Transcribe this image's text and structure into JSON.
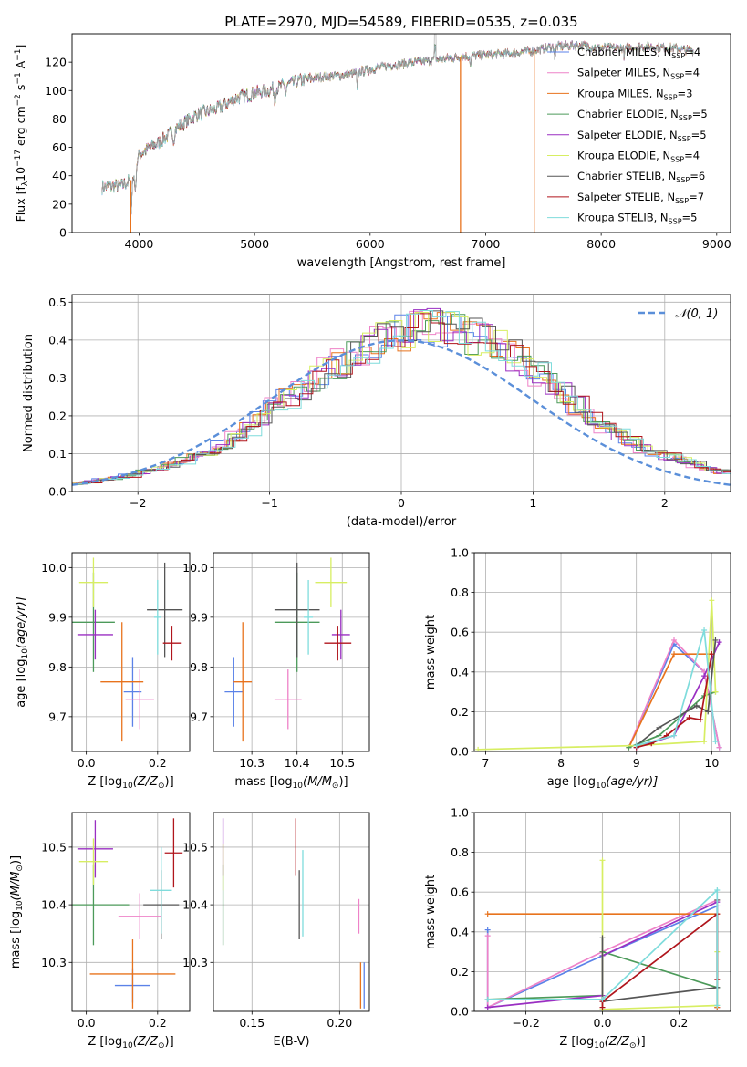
{
  "title": "PLATE=2970, MJD=54589, FIBERID=0535, z=0.035",
  "colors": {
    "Chabrier MILES": "#5b82e8",
    "Salpeter MILES": "#ee82c8",
    "Kroupa MILES": "#e8731d",
    "Chabrier ELODIE": "#4c9a5a",
    "Salpeter ELODIE": "#9a2fc2",
    "Kroupa ELODIE": "#d7ee62",
    "Chabrier STELIB": "#555555",
    "Salpeter STELIB": "#b0151c",
    "Kroupa STELIB": "#7fdcdc",
    "data": "#a0a0a0",
    "normal": "#5b8fd9"
  },
  "chart_data": [
    {
      "id": "spectrum",
      "type": "line",
      "xlabel": "wavelength [Angstrom, rest frame]",
      "ylabel": "Flux [f",
      "ylabel_sub": "λ",
      "ylabel_rest": "10",
      "ylabel_exp": "−17",
      "ylabel_tail": " erg cm",
      "ylabel_exp2": "−2",
      "ylabel_tail2": " s",
      "ylabel_exp3": "−1",
      "ylabel_tail3": " A",
      "ylabel_exp4": "−1",
      "ylabel_end": "]",
      "xlim": [
        3420,
        9120
      ],
      "ylim": [
        0,
        140
      ],
      "xticks": [
        "4000",
        "5000",
        "6000",
        "7000",
        "8000",
        "9000"
      ],
      "yticks": [
        "0",
        "20",
        "40",
        "60",
        "80",
        "100",
        "120"
      ],
      "continuum_points": [
        [
          3680,
          32
        ],
        [
          3850,
          33
        ],
        [
          3950,
          38
        ],
        [
          4000,
          55
        ],
        [
          4100,
          60
        ],
        [
          4200,
          65
        ],
        [
          4350,
          75
        ],
        [
          4500,
          83
        ],
        [
          4700,
          88
        ],
        [
          4850,
          95
        ],
        [
          5000,
          98
        ],
        [
          5200,
          102
        ],
        [
          5400,
          107
        ],
        [
          5600,
          110
        ],
        [
          5800,
          111
        ],
        [
          6000,
          115
        ],
        [
          6200,
          118
        ],
        [
          6400,
          120
        ],
        [
          6600,
          122
        ],
        [
          6800,
          124
        ],
        [
          7000,
          125
        ],
        [
          7200,
          126
        ],
        [
          7400,
          128
        ],
        [
          7600,
          131
        ],
        [
          7800,
          132
        ],
        [
          8000,
          130
        ],
        [
          8200,
          130
        ],
        [
          8400,
          131
        ],
        [
          8600,
          130
        ],
        [
          8800,
          128
        ]
      ],
      "absorption_lines": [
        [
          3933,
          20
        ],
        [
          3968,
          18
        ],
        [
          4300,
          8
        ],
        [
          5175,
          10
        ],
        [
          5270,
          6
        ],
        [
          5890,
          14
        ],
        [
          6563,
          -10
        ],
        [
          6870,
          8
        ],
        [
          7600,
          10
        ],
        [
          8200,
          6
        ]
      ],
      "drop_lines": [
        [
          3928,
          "Kroupa MILES"
        ],
        [
          6782,
          "Kroupa MILES"
        ],
        [
          7420,
          "Kroupa MILES"
        ]
      ],
      "legend": [
        {
          "label": "Chabrier MILES, N",
          "sub": "SSP",
          "value": "=4"
        },
        {
          "label": "Salpeter MILES, N",
          "sub": "SSP",
          "value": "=4"
        },
        {
          "label": "Kroupa MILES, N",
          "sub": "SSP",
          "value": "=3"
        },
        {
          "label": "Chabrier ELODIE, N",
          "sub": "SSP",
          "value": "=5"
        },
        {
          "label": "Salpeter ELODIE, N",
          "sub": "SSP",
          "value": "=5"
        },
        {
          "label": "Kroupa ELODIE, N",
          "sub": "SSP",
          "value": "=4"
        },
        {
          "label": "Chabrier STELIB, N",
          "sub": "SSP",
          "value": "=6"
        },
        {
          "label": "Salpeter STELIB, N",
          "sub": "SSP",
          "value": "=7"
        },
        {
          "label": "Kroupa STELIB, N",
          "sub": "SSP",
          "value": "=5"
        }
      ]
    },
    {
      "id": "residuals",
      "type": "histogram",
      "xlabel": "(data-model)/error",
      "ylabel": "Normed distribution",
      "xlim": [
        -2.5,
        2.5
      ],
      "ylim": [
        0,
        0.52
      ],
      "xticks": [
        "−2",
        "−1",
        "0",
        "1",
        "2"
      ],
      "yticks": [
        "0.0",
        "0.1",
        "0.2",
        "0.3",
        "0.4",
        "0.5"
      ],
      "bin_width": 0.1,
      "legend_label": "𝒩(0, 1)",
      "base_profile": [
        0.02,
        0.025,
        0.03,
        0.035,
        0.04,
        0.05,
        0.06,
        0.07,
        0.08,
        0.09,
        0.1,
        0.12,
        0.14,
        0.16,
        0.19,
        0.22,
        0.24,
        0.26,
        0.29,
        0.31,
        0.33,
        0.35,
        0.37,
        0.39,
        0.4,
        0.41,
        0.42,
        0.43,
        0.42,
        0.41,
        0.4,
        0.39,
        0.37,
        0.35,
        0.33,
        0.31,
        0.28,
        0.25,
        0.22,
        0.19,
        0.17,
        0.15,
        0.13,
        0.11,
        0.1,
        0.09,
        0.08,
        0.07,
        0.06,
        0.05
      ]
    },
    {
      "id": "age_vs_Z",
      "type": "errorbar",
      "xlabel": "Z [log",
      "xlabel_sub": "10",
      "xlabel_rest": "(Z/Z",
      "xlabel_sun": "⊙",
      "xlabel_end": ")]",
      "ylabel": "age  [log",
      "ylabel_sub": "10",
      "ylabel_rest": "(age/yr)]",
      "xlim": [
        -0.04,
        0.29
      ],
      "ylim": [
        9.63,
        10.03
      ],
      "xticks": [
        "0.0",
        "0.2"
      ],
      "yticks": [
        "9.7",
        "9.8",
        "9.9",
        "10.0"
      ],
      "points": [
        {
          "model": "Chabrier MILES",
          "x": 0.13,
          "y": 9.75,
          "xerr": 0.025,
          "yerr": 0.07
        },
        {
          "model": "Salpeter MILES",
          "x": 0.15,
          "y": 9.735,
          "xerr": 0.04,
          "yerr": 0.06
        },
        {
          "model": "Kroupa MILES",
          "x": 0.1,
          "y": 9.77,
          "xerr": 0.06,
          "yerr": 0.12
        },
        {
          "model": "Chabrier ELODIE",
          "x": 0.02,
          "y": 9.89,
          "xerr": 0.06,
          "yerr": 0.1
        },
        {
          "model": "Salpeter ELODIE",
          "x": 0.025,
          "y": 9.865,
          "xerr": 0.05,
          "yerr": 0.05
        },
        {
          "model": "Kroupa ELODIE",
          "x": 0.02,
          "y": 9.97,
          "xerr": 0.04,
          "yerr": 0.05
        },
        {
          "model": "Chabrier STELIB",
          "x": 0.22,
          "y": 9.915,
          "xerr": 0.05,
          "yerr": 0.095
        },
        {
          "model": "Salpeter STELIB",
          "x": 0.24,
          "y": 9.848,
          "xerr": 0.025,
          "yerr": 0.035
        },
        {
          "model": "Kroupa STELIB",
          "x": 0.2,
          "y": 9.9,
          "xerr": 0.01,
          "yerr": 0.075
        }
      ]
    },
    {
      "id": "age_vs_mass",
      "type": "errorbar",
      "xlabel": "mass [log",
      "xlabel_sub": "10",
      "xlabel_rest": "(M/M",
      "xlabel_sun": "⊙",
      "xlabel_end": ")]",
      "xlim": [
        10.215,
        10.56
      ],
      "ylim": [
        9.63,
        10.03
      ],
      "xticks": [
        "10.3",
        "10.4",
        "10.5"
      ],
      "yticks": [
        "9.7",
        "9.8",
        "9.9",
        "10.0"
      ],
      "points": [
        {
          "model": "Chabrier MILES",
          "x": 10.26,
          "y": 9.75,
          "xerr": 0.02,
          "yerr": 0.07
        },
        {
          "model": "Salpeter MILES",
          "x": 10.38,
          "y": 9.735,
          "xerr": 0.03,
          "yerr": 0.06
        },
        {
          "model": "Kroupa MILES",
          "x": 10.28,
          "y": 9.77,
          "xerr": 0.02,
          "yerr": 0.12
        },
        {
          "model": "Chabrier ELODIE",
          "x": 10.4,
          "y": 9.89,
          "xerr": 0.05,
          "yerr": 0.1
        },
        {
          "model": "Salpeter ELODIE",
          "x": 10.497,
          "y": 9.865,
          "xerr": 0.02,
          "yerr": 0.05
        },
        {
          "model": "Kroupa ELODIE",
          "x": 10.475,
          "y": 9.97,
          "xerr": 0.035,
          "yerr": 0.05
        },
        {
          "model": "Chabrier STELIB",
          "x": 10.4,
          "y": 9.915,
          "xerr": 0.05,
          "yerr": 0.095
        },
        {
          "model": "Salpeter STELIB",
          "x": 10.49,
          "y": 9.848,
          "xerr": 0.03,
          "yerr": 0.035
        },
        {
          "model": "Kroupa STELIB",
          "x": 10.425,
          "y": 9.9,
          "xerr": 0.01,
          "yerr": 0.075
        }
      ]
    },
    {
      "id": "weight_vs_age",
      "type": "line",
      "xlabel": "age  [log",
      "xlabel_sub": "10",
      "xlabel_rest": "(age/yr)]",
      "ylabel": "mass weight",
      "xlim": [
        6.85,
        10.25
      ],
      "ylim": [
        0,
        1
      ],
      "xticks": [
        "7",
        "8",
        "9",
        "10"
      ],
      "yticks": [
        "0.0",
        "0.2",
        "0.4",
        "0.6",
        "0.8",
        "1.0"
      ],
      "series": [
        {
          "model": "Chabrier MILES",
          "x": [
            8.9,
            9.5,
            9.9,
            10.1
          ],
          "y": [
            0.02,
            0.54,
            0.4,
            0.02
          ]
        },
        {
          "model": "Salpeter MILES",
          "x": [
            8.9,
            9.5,
            9.9,
            10.1
          ],
          "y": [
            0.02,
            0.56,
            0.4,
            0.02
          ]
        },
        {
          "model": "Kroupa MILES",
          "x": [
            8.9,
            9.5,
            10.0
          ],
          "y": [
            0.02,
            0.49,
            0.49
          ]
        },
        {
          "model": "Chabrier ELODIE",
          "x": [
            8.9,
            9.3,
            9.9,
            10.05
          ],
          "y": [
            0.02,
            0.08,
            0.28,
            0.3
          ]
        },
        {
          "model": "Salpeter ELODIE",
          "x": [
            9.0,
            9.5,
            9.9,
            10.1
          ],
          "y": [
            0.02,
            0.08,
            0.38,
            0.55
          ]
        },
        {
          "model": "Kroupa ELODIE",
          "x": [
            6.9,
            9.0,
            9.9,
            10.0,
            10.05
          ],
          "y": [
            0.01,
            0.03,
            0.05,
            0.76,
            0.3
          ]
        },
        {
          "model": "Chabrier STELIB",
          "x": [
            9.0,
            9.3,
            9.8,
            9.95,
            10.05
          ],
          "y": [
            0.03,
            0.12,
            0.23,
            0.2,
            0.56
          ]
        },
        {
          "model": "Salpeter STELIB",
          "x": [
            9.0,
            9.2,
            9.4,
            9.7,
            9.85,
            10.0
          ],
          "y": [
            0.02,
            0.04,
            0.08,
            0.17,
            0.16,
            0.49
          ]
        },
        {
          "model": "Kroupa STELIB",
          "x": [
            9.0,
            9.5,
            9.9,
            10.05
          ],
          "y": [
            0.03,
            0.08,
            0.61,
            0.05
          ]
        }
      ]
    },
    {
      "id": "mass_vs_Z",
      "type": "errorbar",
      "xlabel": "Z [log",
      "xlabel_sub": "10",
      "xlabel_rest": "(Z/Z",
      "xlabel_sun": "⊙",
      "xlabel_end": ")]",
      "ylabel": "mass [log",
      "ylabel_sub": "10",
      "ylabel_rest": "(M/M",
      "ylabel_sun": "⊙",
      "ylabel_end": ")]",
      "xlim": [
        -0.04,
        0.29
      ],
      "ylim": [
        10.215,
        10.56
      ],
      "xticks": [
        "0.0",
        "0.2"
      ],
      "yticks": [
        "10.3",
        "10.4",
        "10.5"
      ],
      "points": [
        {
          "model": "Chabrier MILES",
          "x": 0.13,
          "y": 10.26,
          "xerr": 0.05,
          "yerr": 0.03
        },
        {
          "model": "Salpeter MILES",
          "x": 0.15,
          "y": 10.38,
          "xerr": 0.06,
          "yerr": 0.04
        },
        {
          "model": "Kroupa MILES",
          "x": 0.13,
          "y": 10.28,
          "xerr": 0.12,
          "yerr": 0.06
        },
        {
          "model": "Chabrier ELODIE",
          "x": 0.02,
          "y": 10.4,
          "xerr": 0.1,
          "yerr": 0.07
        },
        {
          "model": "Salpeter ELODIE",
          "x": 0.025,
          "y": 10.497,
          "xerr": 0.05,
          "yerr": 0.05
        },
        {
          "model": "Kroupa ELODIE",
          "x": 0.02,
          "y": 10.475,
          "xerr": 0.04,
          "yerr": 0.04
        },
        {
          "model": "Chabrier STELIB",
          "x": 0.21,
          "y": 10.4,
          "xerr": 0.05,
          "yerr": 0.06
        },
        {
          "model": "Salpeter STELIB",
          "x": 0.245,
          "y": 10.49,
          "xerr": 0.025,
          "yerr": 0.06
        },
        {
          "model": "Kroupa STELIB",
          "x": 0.21,
          "y": 10.425,
          "xerr": 0.03,
          "yerr": 0.075
        }
      ]
    },
    {
      "id": "mass_vs_ebv",
      "type": "errorbar",
      "xlabel": "E(B-V)",
      "xlim": [
        0.128,
        0.217
      ],
      "ylim": [
        10.215,
        10.56
      ],
      "xticks": [
        "0.15",
        "0.20"
      ],
      "yticks": [
        "10.3",
        "10.4",
        "10.5"
      ],
      "points": [
        {
          "model": "Chabrier MILES",
          "x": 0.214,
          "y": 10.26,
          "xerr": 0,
          "yerr": 0.04
        },
        {
          "model": "Salpeter MILES",
          "x": 0.211,
          "y": 10.38,
          "xerr": 0,
          "yerr": 0.03
        },
        {
          "model": "Kroupa MILES",
          "x": 0.212,
          "y": 10.26,
          "xerr": 0,
          "yerr": 0.04
        },
        {
          "model": "Chabrier ELODIE",
          "x": 0.1335,
          "y": 10.4,
          "xerr": 0,
          "yerr": 0.07
        },
        {
          "model": "Salpeter ELODIE",
          "x": 0.1335,
          "y": 10.5,
          "xerr": 0,
          "yerr": 0.05
        },
        {
          "model": "Kroupa ELODIE",
          "x": 0.1335,
          "y": 10.465,
          "xerr": 0,
          "yerr": 0.04
        },
        {
          "model": "Chabrier STELIB",
          "x": 0.177,
          "y": 10.4,
          "xerr": 0,
          "yerr": 0.06
        },
        {
          "model": "Salpeter STELIB",
          "x": 0.175,
          "y": 10.5,
          "xerr": 0,
          "yerr": 0.05
        },
        {
          "model": "Kroupa STELIB",
          "x": 0.179,
          "y": 10.42,
          "xerr": 0,
          "yerr": 0.075
        }
      ]
    },
    {
      "id": "weight_vs_Z",
      "type": "line",
      "xlabel": "Z [log",
      "xlabel_sub": "10",
      "xlabel_rest": "(Z/Z",
      "xlabel_sun": "⊙",
      "xlabel_end": ")]",
      "ylabel": "mass weight",
      "xlim": [
        -0.335,
        0.335
      ],
      "ylim": [
        0,
        1
      ],
      "xticks": [
        "−0.2",
        "0.0",
        "0.2"
      ],
      "yticks": [
        "0.0",
        "0.2",
        "0.4",
        "0.6",
        "0.8",
        "1.0"
      ],
      "series": [
        {
          "model": "Chabrier MILES",
          "x": [
            -0.3,
            -0.3,
            0.0,
            0.3,
            0.3
          ],
          "y": [
            0.41,
            0.02,
            0.28,
            0.53,
            0.02
          ]
        },
        {
          "model": "Salpeter MILES",
          "x": [
            -0.3,
            -0.3,
            0.0,
            0.3,
            0.3
          ],
          "y": [
            0.38,
            0.02,
            0.3,
            0.56,
            0.02
          ]
        },
        {
          "model": "Kroupa MILES",
          "x": [
            -0.3,
            0.3,
            0.3
          ],
          "y": [
            0.49,
            0.49,
            0.02
          ]
        },
        {
          "model": "Chabrier ELODIE",
          "x": [
            -0.3,
            0.0,
            0.0,
            0.3
          ],
          "y": [
            0.06,
            0.08,
            0.3,
            0.12
          ]
        },
        {
          "model": "Salpeter ELODIE",
          "x": [
            -0.3,
            0.0,
            0.0,
            0.3
          ],
          "y": [
            0.02,
            0.08,
            0.28,
            0.55
          ]
        },
        {
          "model": "Kroupa ELODIE",
          "x": [
            0.0,
            0.0,
            0.3,
            0.3
          ],
          "y": [
            0.76,
            0.01,
            0.03,
            0.3
          ]
        },
        {
          "model": "Chabrier STELIB",
          "x": [
            0.0,
            0.0,
            0.3,
            0.3
          ],
          "y": [
            0.37,
            0.05,
            0.12,
            0.56
          ]
        },
        {
          "model": "Salpeter STELIB",
          "x": [
            0.0,
            0.0,
            0.3,
            0.3
          ],
          "y": [
            0.02,
            0.05,
            0.49,
            0.16
          ]
        },
        {
          "model": "Kroupa STELIB",
          "x": [
            -0.3,
            0.0,
            0.3,
            0.3
          ],
          "y": [
            0.06,
            0.06,
            0.61,
            0.03
          ]
        }
      ]
    }
  ]
}
